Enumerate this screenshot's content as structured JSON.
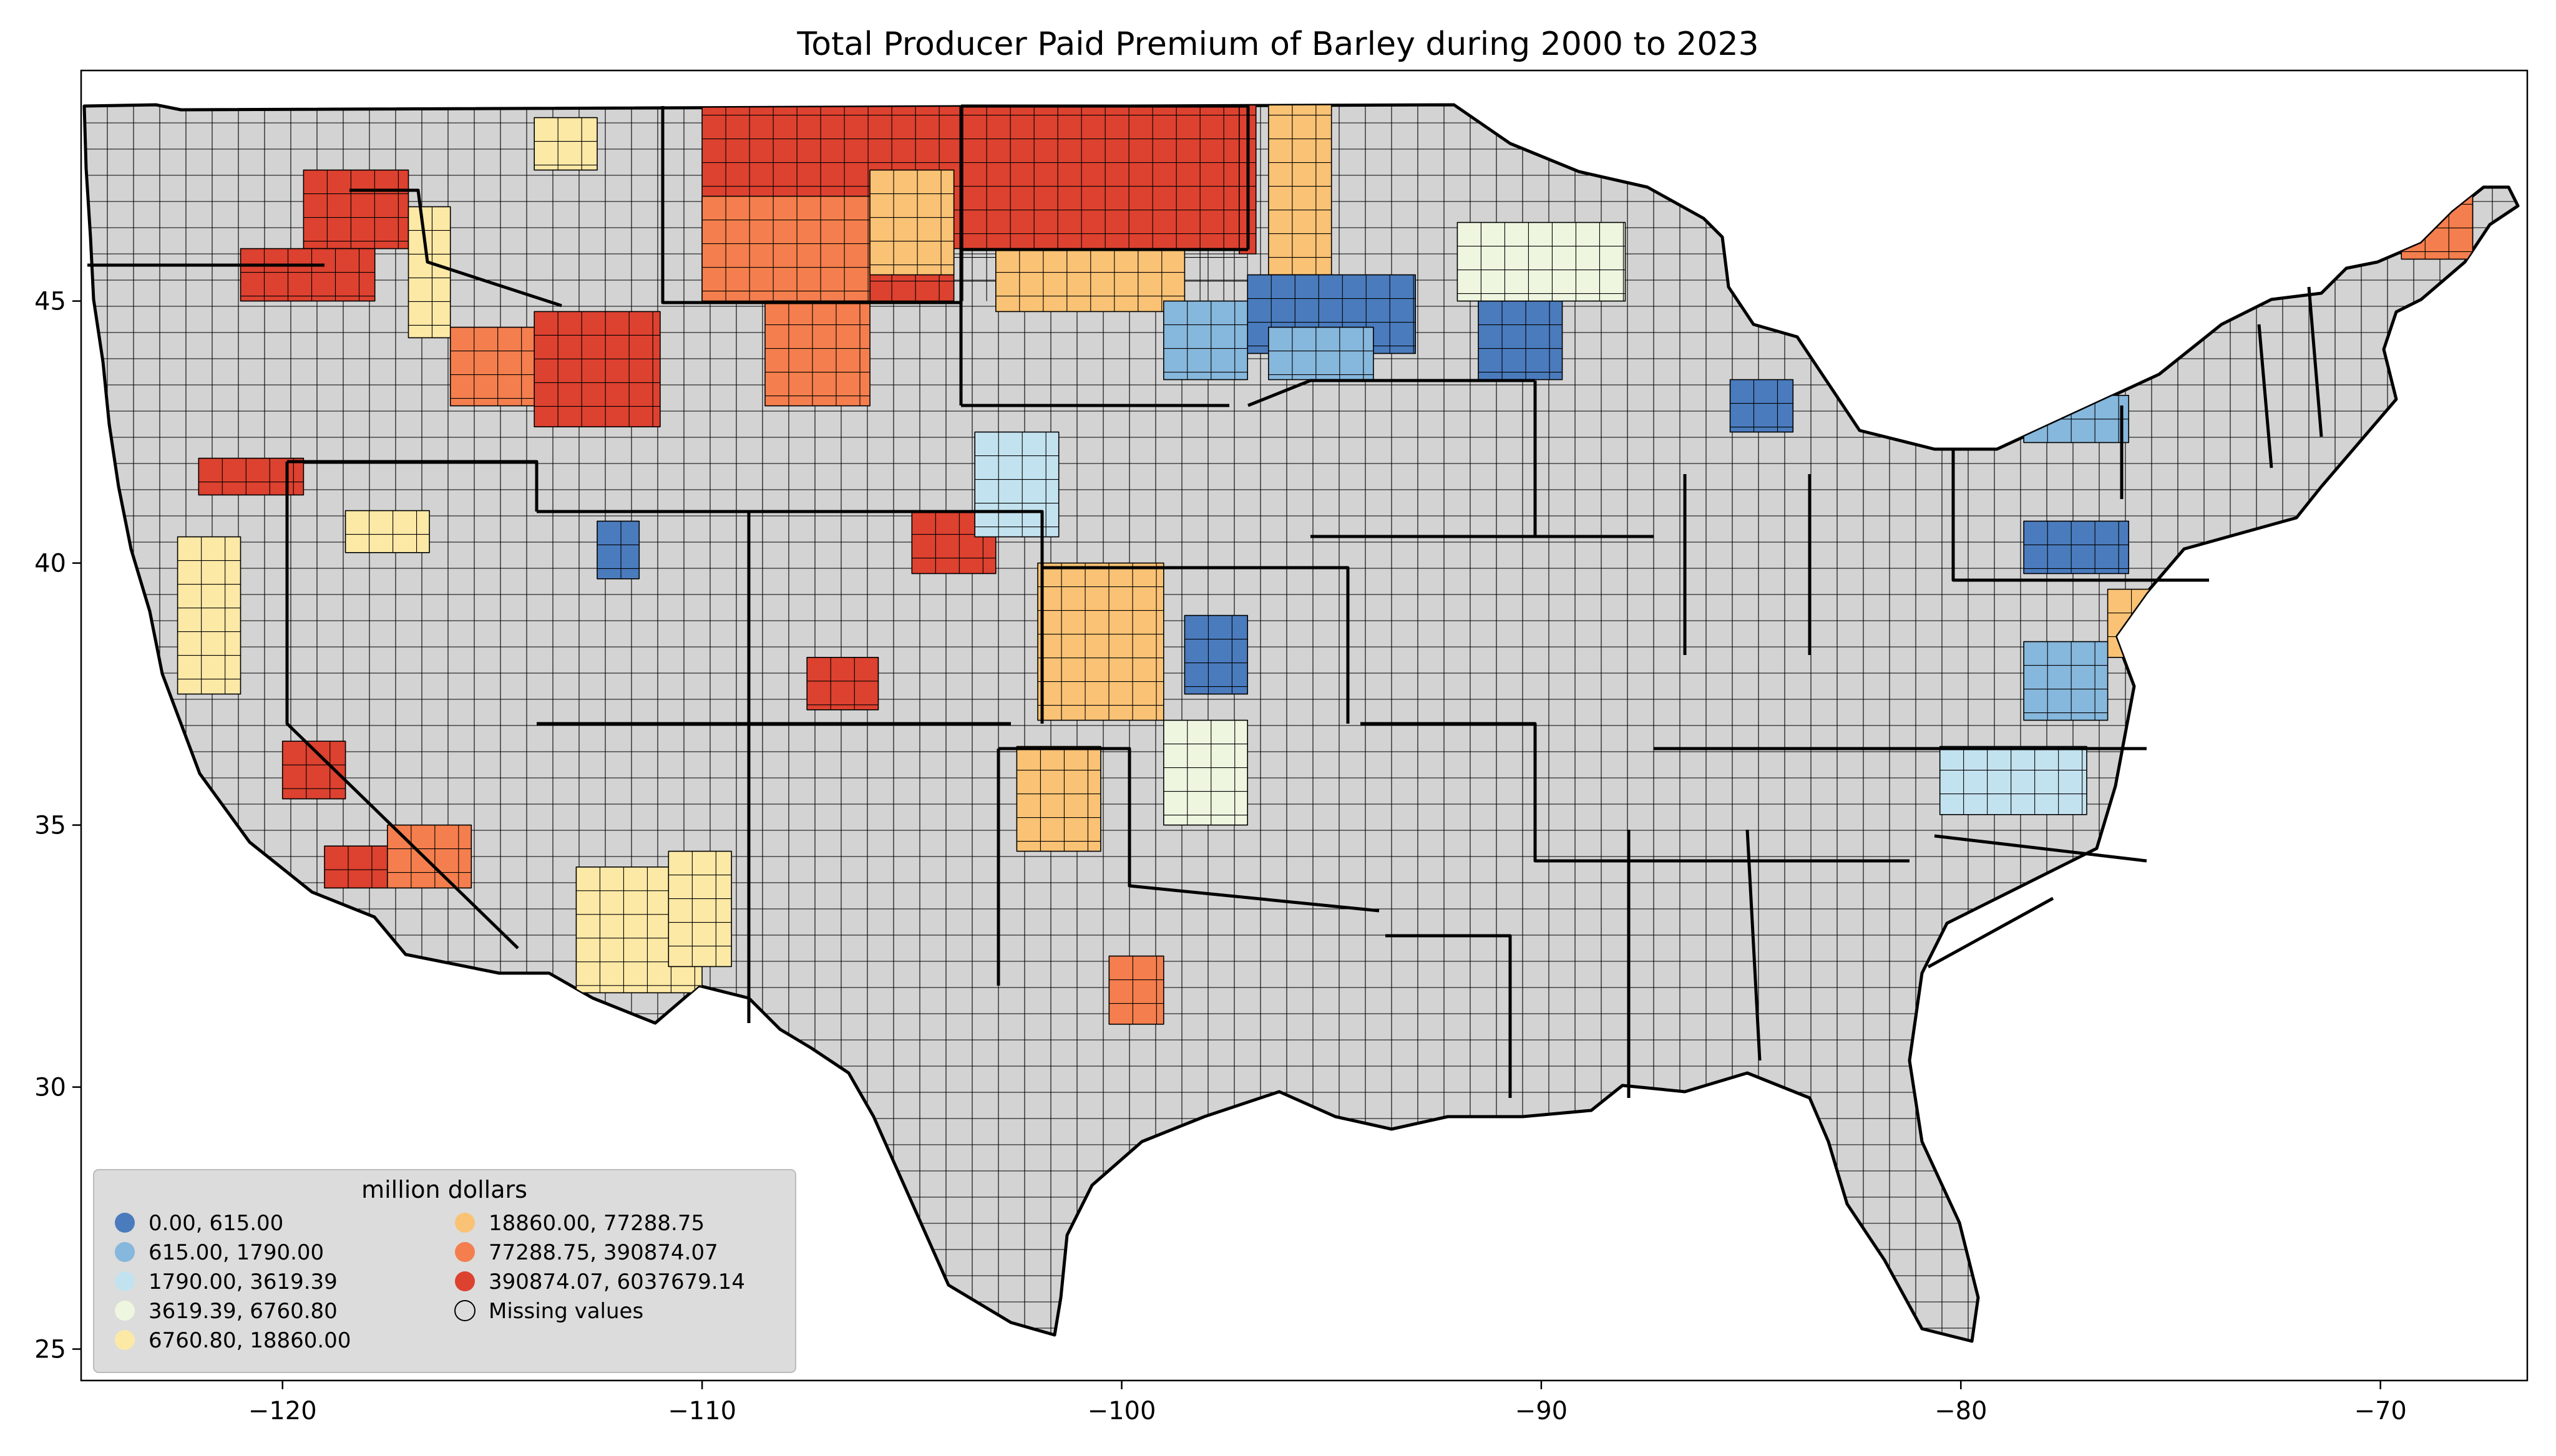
{
  "title": "Total Producer Paid Premium of Barley during 2000 to 2023",
  "colors": {
    "missing": "#d3d3d3",
    "frame": "#000000",
    "legend_bg": "#d9d9d9"
  },
  "axes": {
    "x_ticks": [
      {
        "value": -120,
        "label": "−120"
      },
      {
        "value": -110,
        "label": "−110"
      },
      {
        "value": -100,
        "label": "−100"
      },
      {
        "value": -90,
        "label": "−90"
      },
      {
        "value": -80,
        "label": "−80"
      },
      {
        "value": -70,
        "label": "−70"
      }
    ],
    "y_ticks": [
      {
        "value": 25,
        "label": "25"
      },
      {
        "value": 30,
        "label": "30"
      },
      {
        "value": 35,
        "label": "35"
      },
      {
        "value": 40,
        "label": "40"
      },
      {
        "value": 45,
        "label": "45"
      }
    ],
    "lon_range": [
      -124.8,
      -66.5
    ],
    "lat_range": [
      24.4,
      49.4
    ]
  },
  "legend": {
    "title": "million dollars",
    "placement": "lower-left",
    "entries": [
      {
        "label": "0.00,     615.00",
        "color": "#4a7bbd"
      },
      {
        "label": "615.00,    1790.00",
        "color": "#86b7dc"
      },
      {
        "label": "1790.00,    3619.39",
        "color": "#c3e2ef"
      },
      {
        "label": "3619.39,    6760.80",
        "color": "#eef6e0"
      },
      {
        "label": "6760.80,   18860.00",
        "color": "#fde9a6"
      },
      {
        "label": "18860.00,   77288.75",
        "color": "#fac274"
      },
      {
        "label": "77288.75,  390874.07",
        "color": "#f47e4d"
      },
      {
        "label": "390874.07, 6037679.14",
        "color": "#dd412f"
      },
      {
        "label": "Missing values",
        "color": "none"
      }
    ]
  },
  "regions": [
    {
      "name": "northern-plains-high",
      "class": 7,
      "polygon": [
        [
          -110,
          49
        ],
        [
          -97,
          49
        ],
        [
          -97,
          46
        ],
        [
          -104,
          46
        ],
        [
          -104,
          45
        ],
        [
          -110,
          45
        ]
      ]
    },
    {
      "name": "north-dakota-east",
      "class": 7,
      "polygon": [
        [
          -97.2,
          49
        ],
        [
          -96.8,
          49
        ],
        [
          -96.8,
          45.9
        ],
        [
          -97.2,
          45.9
        ]
      ]
    },
    {
      "name": "montana-central",
      "class": 6,
      "polygon": [
        [
          -110,
          47
        ],
        [
          -106,
          47
        ],
        [
          -106,
          45
        ],
        [
          -110,
          45
        ]
      ]
    },
    {
      "name": "idaho-east",
      "class": 7,
      "polygon": [
        [
          -114,
          44.8
        ],
        [
          -111,
          44.8
        ],
        [
          -111,
          42.6
        ],
        [
          -114,
          42.6
        ]
      ]
    },
    {
      "name": "idaho-southwest",
      "class": 6,
      "polygon": [
        [
          -116,
          44.5
        ],
        [
          -114,
          44.5
        ],
        [
          -114,
          43
        ],
        [
          -116,
          43
        ]
      ]
    },
    {
      "name": "washington-east",
      "class": 7,
      "polygon": [
        [
          -119.5,
          47.5
        ],
        [
          -117,
          47.5
        ],
        [
          -117,
          46
        ],
        [
          -119.5,
          46
        ]
      ]
    },
    {
      "name": "oregon-north",
      "class": 7,
      "polygon": [
        [
          -121,
          46
        ],
        [
          -117.8,
          46
        ],
        [
          -117.8,
          45
        ],
        [
          -121,
          45
        ]
      ]
    },
    {
      "name": "oregon-south",
      "class": 7,
      "polygon": [
        [
          -122,
          42
        ],
        [
          -119.5,
          42
        ],
        [
          -119.5,
          41.3
        ],
        [
          -122,
          41.3
        ]
      ]
    },
    {
      "name": "wyoming-north",
      "class": 6,
      "polygon": [
        [
          -108.5,
          45
        ],
        [
          -106,
          45
        ],
        [
          -106,
          43
        ],
        [
          -108.5,
          43
        ]
      ]
    },
    {
      "name": "colorado-northeast",
      "class": 7,
      "polygon": [
        [
          -105,
          41
        ],
        [
          -103,
          41
        ],
        [
          -103,
          39.8
        ],
        [
          -105,
          39.8
        ]
      ]
    },
    {
      "name": "colorado-south",
      "class": 7,
      "polygon": [
        [
          -107.5,
          38.2
        ],
        [
          -105.8,
          38.2
        ],
        [
          -105.8,
          37.2
        ],
        [
          -107.5,
          37.2
        ]
      ]
    },
    {
      "name": "california-central",
      "class": 7,
      "polygon": [
        [
          -120,
          36.6
        ],
        [
          -118.5,
          36.6
        ],
        [
          -118.5,
          35.5
        ],
        [
          -120,
          35.5
        ]
      ]
    },
    {
      "name": "california-south",
      "class": 7,
      "polygon": [
        [
          -119,
          34.6
        ],
        [
          -117.5,
          34.6
        ],
        [
          -117.5,
          33.8
        ],
        [
          -119,
          33.8
        ]
      ]
    },
    {
      "name": "california-southeast",
      "class": 6,
      "polygon": [
        [
          -117.5,
          35
        ],
        [
          -115.5,
          35
        ],
        [
          -115.5,
          33.8
        ],
        [
          -117.5,
          33.8
        ]
      ]
    },
    {
      "name": "maine-north",
      "class": 6,
      "polygon": [
        [
          -69.5,
          47.3
        ],
        [
          -67.8,
          47.3
        ],
        [
          -67.8,
          45.8
        ],
        [
          -69.5,
          45.8
        ]
      ]
    },
    {
      "name": "minnesota-northwest",
      "class": 5,
      "polygon": [
        [
          -96.5,
          49
        ],
        [
          -95,
          49
        ],
        [
          -95,
          45.5
        ],
        [
          -96.5,
          45.5
        ]
      ]
    },
    {
      "name": "south-dakota-north",
      "class": 5,
      "polygon": [
        [
          -103,
          46
        ],
        [
          -98.5,
          46
        ],
        [
          -98.5,
          44.8
        ],
        [
          -103,
          44.8
        ]
      ]
    },
    {
      "name": "montana-east",
      "class": 5,
      "polygon": [
        [
          -106,
          47.5
        ],
        [
          -104,
          47.5
        ],
        [
          -104,
          45.5
        ],
        [
          -106,
          45.5
        ]
      ]
    },
    {
      "name": "texas-panhandle",
      "class": 5,
      "polygon": [
        [
          -102.5,
          36.5
        ],
        [
          -100.5,
          36.5
        ],
        [
          -100.5,
          34.5
        ],
        [
          -102.5,
          34.5
        ]
      ]
    },
    {
      "name": "texas-central",
      "class": 6,
      "polygon": [
        [
          -100.3,
          32.5
        ],
        [
          -99,
          32.5
        ],
        [
          -99,
          31.2
        ],
        [
          -100.3,
          31.2
        ]
      ]
    },
    {
      "name": "arizona-central",
      "class": 4,
      "polygon": [
        [
          -113,
          34.2
        ],
        [
          -110,
          34.2
        ],
        [
          -110,
          31.8
        ],
        [
          -113,
          31.8
        ]
      ]
    },
    {
      "name": "arizona-east",
      "class": 4,
      "polygon": [
        [
          -110.8,
          34.5
        ],
        [
          -109.3,
          34.5
        ],
        [
          -109.3,
          32.3
        ],
        [
          -110.8,
          32.3
        ]
      ]
    },
    {
      "name": "idaho-north",
      "class": 4,
      "polygon": [
        [
          -117,
          46.8
        ],
        [
          -116,
          46.8
        ],
        [
          -116,
          44.3
        ],
        [
          -117,
          44.3
        ]
      ]
    },
    {
      "name": "nevada-north",
      "class": 4,
      "polygon": [
        [
          -118.5,
          41
        ],
        [
          -116.5,
          41
        ],
        [
          -116.5,
          40.2
        ],
        [
          -118.5,
          40.2
        ]
      ]
    },
    {
      "name": "kansas-west",
      "class": 5,
      "polygon": [
        [
          -102,
          40
        ],
        [
          -99,
          40
        ],
        [
          -99,
          37
        ],
        [
          -102,
          37
        ]
      ]
    },
    {
      "name": "kansas-central",
      "class": 0,
      "polygon": [
        [
          -98.5,
          39
        ],
        [
          -97,
          39
        ],
        [
          -97,
          37.5
        ],
        [
          -98.5,
          37.5
        ]
      ]
    },
    {
      "name": "minnesota-central",
      "class": 0,
      "polygon": [
        [
          -97,
          45.5
        ],
        [
          -93,
          45.5
        ],
        [
          -93,
          44
        ],
        [
          -97,
          44
        ]
      ]
    },
    {
      "name": "minnesota-south",
      "class": 1,
      "polygon": [
        [
          -96.5,
          44.5
        ],
        [
          -94,
          44.5
        ],
        [
          -94,
          43.5
        ],
        [
          -96.5,
          43.5
        ]
      ]
    },
    {
      "name": "wisconsin-central",
      "class": 0,
      "polygon": [
        [
          -91.5,
          45
        ],
        [
          -89.5,
          45
        ],
        [
          -89.5,
          43.5
        ],
        [
          -91.5,
          43.5
        ]
      ]
    },
    {
      "name": "wisconsin-north",
      "class": 3,
      "polygon": [
        [
          -92,
          46.5
        ],
        [
          -88,
          46.5
        ],
        [
          -88,
          45
        ],
        [
          -92,
          45
        ]
      ]
    },
    {
      "name": "south-dakota-east",
      "class": 1,
      "polygon": [
        [
          -99,
          45
        ],
        [
          -97,
          45
        ],
        [
          -97,
          43.5
        ],
        [
          -99,
          43.5
        ]
      ]
    },
    {
      "name": "nebraska-west",
      "class": 2,
      "polygon": [
        [
          -103.5,
          42.5
        ],
        [
          -101.5,
          42.5
        ],
        [
          -101.5,
          40.5
        ],
        [
          -103.5,
          40.5
        ]
      ]
    },
    {
      "name": "pennsylvania-south",
      "class": 0,
      "polygon": [
        [
          -78.5,
          40.8
        ],
        [
          -76,
          40.8
        ],
        [
          -76,
          39.8
        ],
        [
          -78.5,
          39.8
        ]
      ]
    },
    {
      "name": "maryland-east",
      "class": 5,
      "polygon": [
        [
          -76.5,
          39.5
        ],
        [
          -75.2,
          39.5
        ],
        [
          -75.2,
          38.2
        ],
        [
          -76.5,
          38.2
        ]
      ]
    },
    {
      "name": "virginia-east",
      "class": 1,
      "polygon": [
        [
          -78.5,
          38.5
        ],
        [
          -76.5,
          38.5
        ],
        [
          -76.5,
          37
        ],
        [
          -78.5,
          37
        ]
      ]
    },
    {
      "name": "north-carolina-central",
      "class": 2,
      "polygon": [
        [
          -80.5,
          36.5
        ],
        [
          -77,
          36.5
        ],
        [
          -77,
          35.2
        ],
        [
          -80.5,
          35.2
        ]
      ]
    },
    {
      "name": "new-york-west",
      "class": 1,
      "polygon": [
        [
          -78.5,
          43.2
        ],
        [
          -76,
          43.2
        ],
        [
          -76,
          42.3
        ],
        [
          -78.5,
          42.3
        ]
      ]
    },
    {
      "name": "michigan-south",
      "class": 0,
      "polygon": [
        [
          -85.5,
          43.5
        ],
        [
          -84,
          43.5
        ],
        [
          -84,
          42.5
        ],
        [
          -85.5,
          42.5
        ]
      ]
    },
    {
      "name": "utah-north",
      "class": 0,
      "polygon": [
        [
          -112.5,
          40.8
        ],
        [
          -111.5,
          40.8
        ],
        [
          -111.5,
          39.7
        ],
        [
          -112.5,
          39.7
        ]
      ]
    },
    {
      "name": "oklahoma-north",
      "class": 3,
      "polygon": [
        [
          -99,
          37
        ],
        [
          -97,
          37
        ],
        [
          -97,
          35
        ],
        [
          -99,
          35
        ]
      ]
    },
    {
      "name": "montana-west",
      "class": 4,
      "polygon": [
        [
          -114,
          48.5
        ],
        [
          -112.5,
          48.5
        ],
        [
          -112.5,
          47.5
        ],
        [
          -114,
          47.5
        ]
      ]
    },
    {
      "name": "california-north",
      "class": 4,
      "polygon": [
        [
          -122.5,
          40.5
        ],
        [
          -121,
          40.5
        ],
        [
          -121,
          37.5
        ],
        [
          -122.5,
          37.5
        ]
      ]
    }
  ]
}
